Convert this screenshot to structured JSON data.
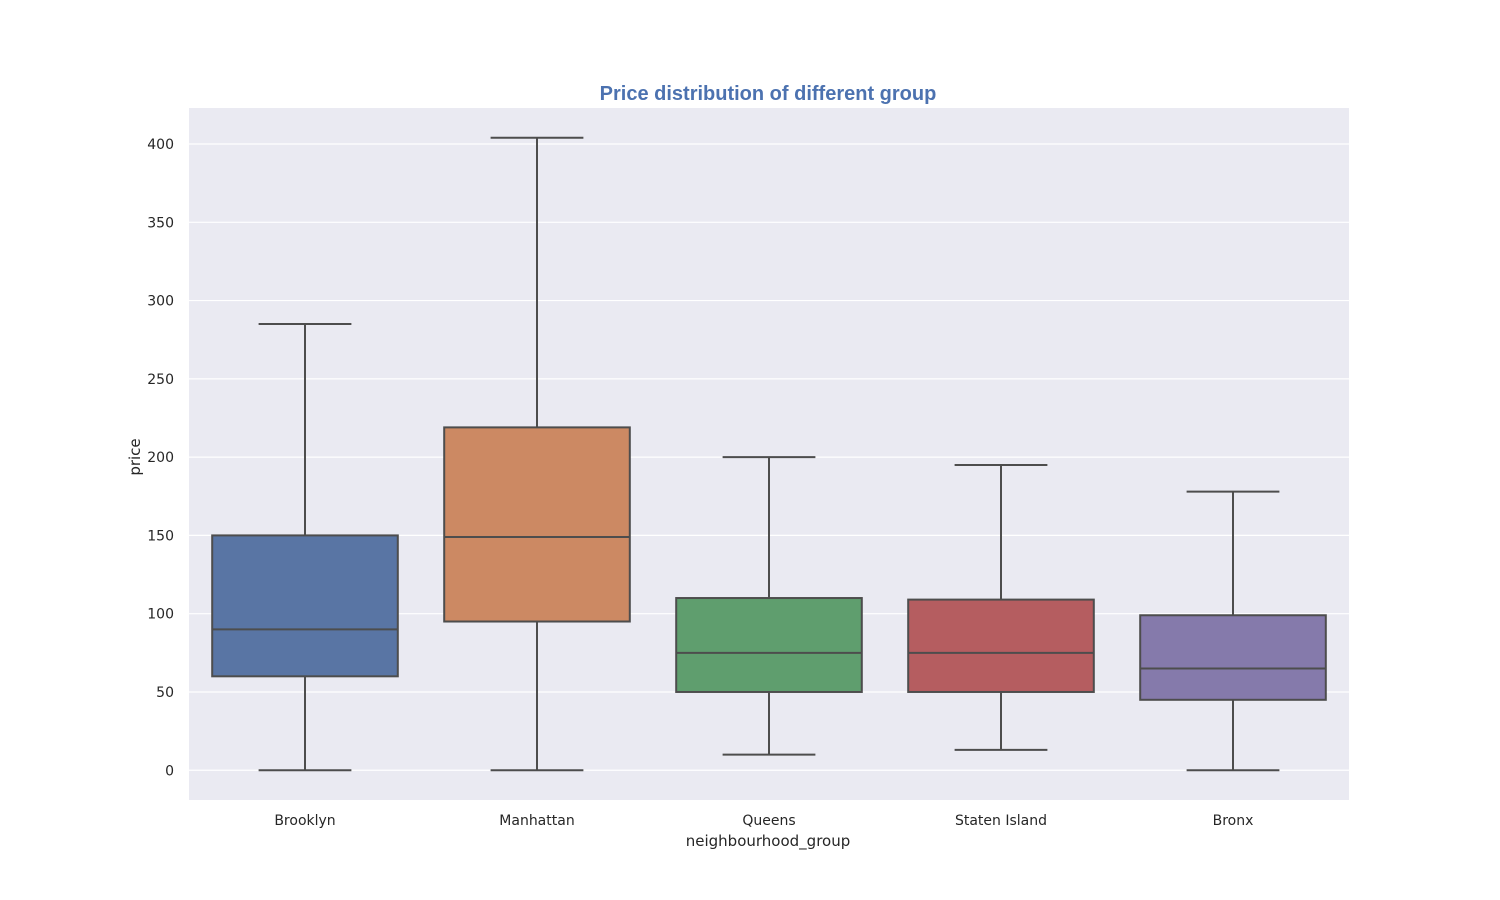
{
  "chart_data": {
    "type": "box",
    "title": "Price distribution of different group",
    "xlabel": "neighbourhood_group",
    "ylabel": "price",
    "ylim": [
      -19,
      423
    ],
    "yticks": [
      0,
      50,
      100,
      150,
      200,
      250,
      300,
      350,
      400
    ],
    "grid": true,
    "background": "#eaeaf2",
    "gridColor": "#ffffff",
    "lineColor": "#4d4d4d",
    "categories": [
      "Brooklyn",
      "Manhattan",
      "Queens",
      "Staten Island",
      "Bronx"
    ],
    "boxes": [
      {
        "name": "Brooklyn",
        "whisker_low": 0,
        "q1": 60,
        "median": 90,
        "q3": 150,
        "whisker_high": 285,
        "color": "#5975a4"
      },
      {
        "name": "Manhattan",
        "whisker_low": 0,
        "q1": 95,
        "median": 149,
        "q3": 219,
        "whisker_high": 404,
        "color": "#cc8963"
      },
      {
        "name": "Queens",
        "whisker_low": 10,
        "q1": 50,
        "median": 75,
        "q3": 110,
        "whisker_high": 200,
        "color": "#5f9e6e"
      },
      {
        "name": "Staten Island",
        "whisker_low": 13,
        "q1": 50,
        "median": 75,
        "q3": 109,
        "whisker_high": 195,
        "color": "#b55d60"
      },
      {
        "name": "Bronx",
        "whisker_low": 0,
        "q1": 45,
        "median": 65,
        "q3": 99,
        "whisker_high": 178,
        "color": "#857aab"
      }
    ]
  }
}
